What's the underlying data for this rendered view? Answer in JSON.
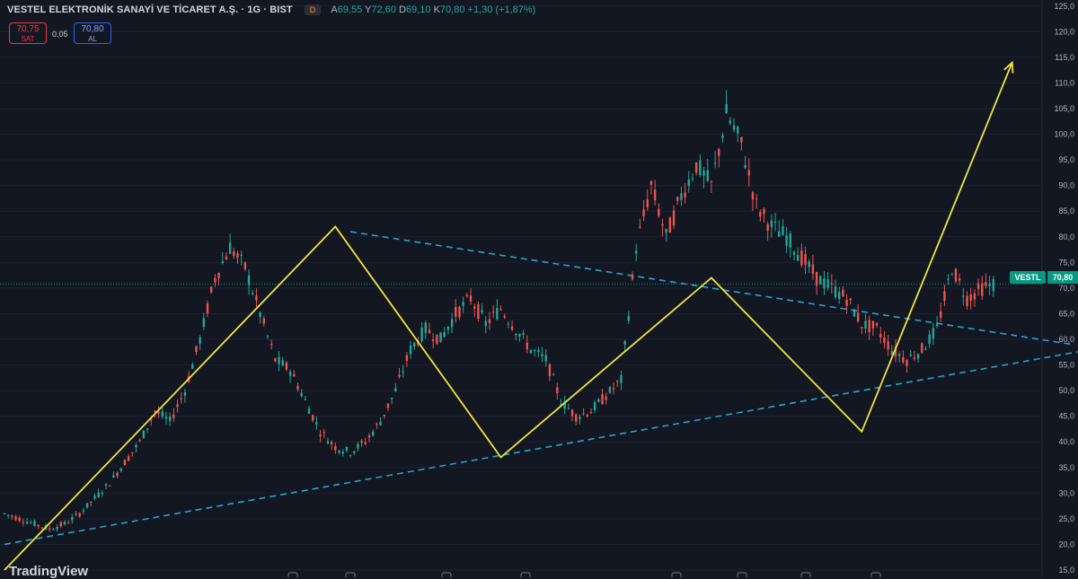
{
  "header": {
    "title": "VESTEL ELEKTRONİK SANAYİ VE TİCARET A.Ş. · 1G · BIST",
    "badge": "D",
    "open_label": "A",
    "open": "69,55",
    "high_label": "Y",
    "high": "72,60",
    "low_label": "D",
    "low": "69,10",
    "close_label": "K",
    "close": "70,80",
    "change": "+1,30 (+1,87%)"
  },
  "trade": {
    "sell_price": "70,75",
    "sell_label": "SAT",
    "spread": "0,05",
    "buy_price": "70,80",
    "buy_label": "AL"
  },
  "price_axis": {
    "ticker": "VESTL",
    "last_price": "70,80",
    "ticks": [
      "125,0",
      "120,0",
      "115,0",
      "110,0",
      "105,0",
      "100,0",
      "95,0",
      "90,0",
      "85,0",
      "80,0",
      "75,0",
      "70,0",
      "65,0",
      "60,0",
      "55,0",
      "50,0",
      "45,0",
      "40,0",
      "35,0",
      "30,0",
      "25,0",
      "20,0",
      "15,0"
    ]
  },
  "logo": "TradingView",
  "colors": {
    "background": "#131722",
    "up": "#26a69a",
    "down": "#ef5350",
    "zigzag": "#f0e442",
    "trendline": "#29a3c9",
    "last_price": "#089981"
  },
  "chart_data": {
    "type": "line",
    "ylim": [
      15,
      125
    ],
    "series": [
      {
        "values": [
          26,
          25,
          24,
          23,
          24,
          26,
          29,
          32,
          36,
          40,
          46,
          44,
          50,
          60,
          72,
          78,
          74,
          65,
          56,
          54,
          48,
          42,
          39,
          38,
          40,
          44,
          50,
          58,
          62,
          60,
          65,
          68,
          63,
          66,
          62,
          58,
          56,
          48,
          45,
          46,
          49,
          52,
          78,
          90,
          80,
          88,
          94,
          90,
          104,
          98,
          86,
          82,
          80,
          76,
          72,
          70,
          68,
          63,
          62,
          58,
          56,
          58,
          62,
          74,
          68,
          70,
          71
        ]
      }
    ],
    "annotations": {
      "zigzag": [
        [
          0,
          15
        ],
        [
          22,
          82
        ],
        [
          33,
          37
        ],
        [
          47,
          72
        ],
        [
          57,
          42
        ],
        [
          67,
          114
        ]
      ],
      "upper_trendline": [
        [
          23,
          81
        ],
        [
          71,
          59
        ]
      ],
      "lower_trendline": [
        [
          0,
          20
        ],
        [
          95,
          70
        ]
      ]
    }
  }
}
